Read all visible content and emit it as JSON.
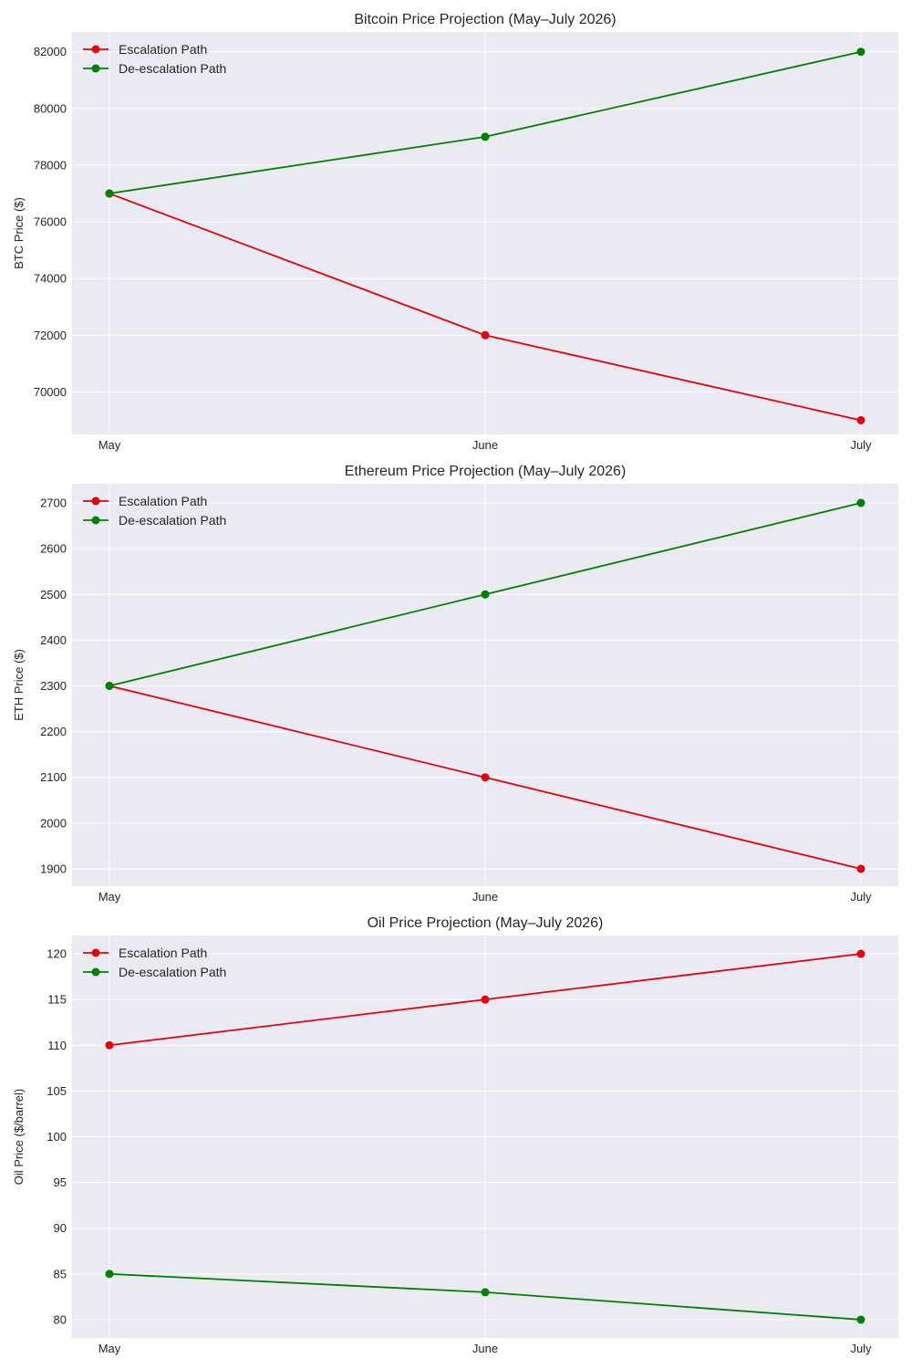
{
  "chart_data": [
    {
      "type": "line",
      "title": "Bitcoin Price Projection (May–July 2026)",
      "xlabel": "",
      "ylabel": "BTC Price ($)",
      "categories": [
        "May",
        "June",
        "July"
      ],
      "ylim": [
        68500,
        82700
      ],
      "yticks": [
        70000,
        72000,
        74000,
        76000,
        78000,
        80000,
        82000
      ],
      "grid": true,
      "legend_position": "top-left",
      "series": [
        {
          "name": "Escalation Path",
          "color": "#e8000b",
          "values": [
            77000,
            72000,
            69000
          ]
        },
        {
          "name": "De-escalation Path",
          "color": "#008000",
          "values": [
            77000,
            79000,
            82000
          ]
        }
      ]
    },
    {
      "type": "line",
      "title": "Ethereum Price Projection (May–July 2026)",
      "xlabel": "",
      "ylabel": "ETH Price ($)",
      "categories": [
        "May",
        "June",
        "July"
      ],
      "ylim": [
        1862,
        2742
      ],
      "yticks": [
        1900,
        2000,
        2100,
        2200,
        2300,
        2400,
        2500,
        2600,
        2700
      ],
      "grid": true,
      "legend_position": "top-left",
      "series": [
        {
          "name": "Escalation Path",
          "color": "#e8000b",
          "values": [
            2300,
            2100,
            1900
          ]
        },
        {
          "name": "De-escalation Path",
          "color": "#008000",
          "values": [
            2300,
            2500,
            2700
          ]
        }
      ]
    },
    {
      "type": "line",
      "title": "Oil Price Projection (May–July 2026)",
      "xlabel": "",
      "ylabel": "Oil Price ($/barrel)",
      "categories": [
        "May",
        "June",
        "July"
      ],
      "ylim": [
        78,
        122
      ],
      "yticks": [
        80,
        85,
        90,
        95,
        100,
        105,
        110,
        115,
        120
      ],
      "grid": true,
      "legend_position": "top-left",
      "series": [
        {
          "name": "Escalation Path",
          "color": "#e8000b",
          "values": [
            110,
            115,
            120
          ]
        },
        {
          "name": "De-escalation Path",
          "color": "#008000",
          "values": [
            85,
            83,
            80
          ]
        }
      ]
    }
  ]
}
